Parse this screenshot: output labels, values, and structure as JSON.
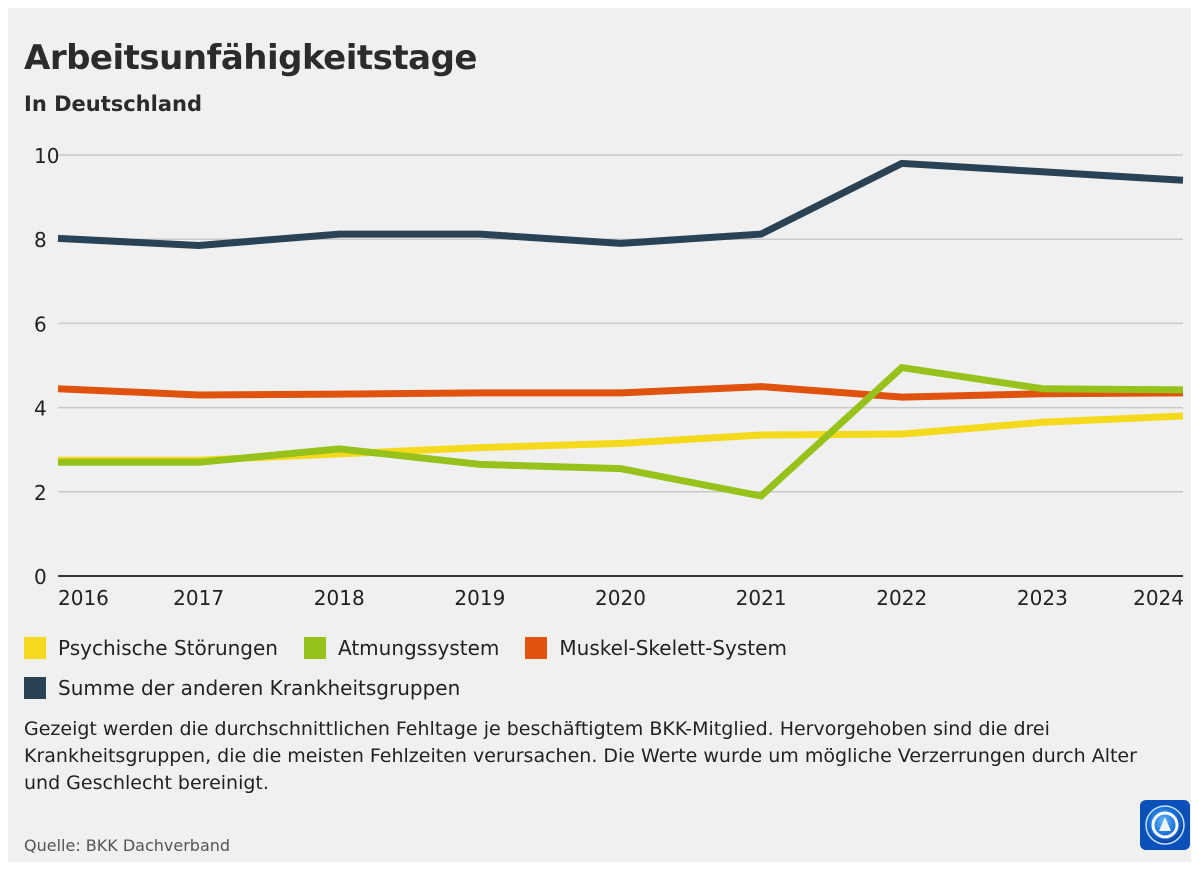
{
  "header": {
    "title": "Arbeitsunfähigkeitstage",
    "subtitle": "In Deutschland"
  },
  "chart_data": {
    "type": "line",
    "title": "Arbeitsunfähigkeitstage",
    "subtitle": "In Deutschland",
    "xlabel": "",
    "ylabel": "",
    "x": [
      "2016",
      "2017",
      "2018",
      "2019",
      "2020",
      "2021",
      "2022",
      "2023",
      "2024"
    ],
    "ylim": [
      0,
      10
    ],
    "yticks": [
      0,
      2,
      4,
      6,
      8,
      10
    ],
    "grid": true,
    "legend_position": "bottom-left",
    "series": [
      {
        "name": "Psychische Störungen",
        "color": "#f5d91d",
        "values": [
          2.75,
          2.75,
          2.9,
          3.05,
          3.15,
          3.35,
          3.37,
          3.65,
          3.8
        ]
      },
      {
        "name": "Muskel-Skelett-System",
        "color": "#e0530f",
        "values": [
          4.45,
          4.3,
          4.32,
          4.35,
          4.35,
          4.5,
          4.25,
          4.33,
          4.35
        ]
      },
      {
        "name": "Atmungssystem",
        "color": "#97c21c",
        "values": [
          2.7,
          2.7,
          3.02,
          2.65,
          2.55,
          1.9,
          4.95,
          4.45,
          4.42
        ]
      },
      {
        "name": "Summe der anderen Krankheitsgruppen",
        "color": "#2a4256",
        "values": [
          8.02,
          7.85,
          8.12,
          8.12,
          7.9,
          8.12,
          9.8,
          9.6,
          9.4
        ]
      }
    ]
  },
  "legend": {
    "items": [
      {
        "label": "Psychische Störungen",
        "color": "#f5d91d"
      },
      {
        "label": "Atmungssystem",
        "color": "#97c21c"
      },
      {
        "label": "Muskel-Skelett-System",
        "color": "#e0530f"
      },
      {
        "label": "Summe der anderen Krankheitsgruppen",
        "color": "#2a4256"
      }
    ]
  },
  "note": "Gezeigt werden die durchschnittlichen Fehltage je beschäftigtem BKK-Mitglied. Hervorgehoben sind die drei Krankheitsgruppen, die die meisten Fehlzeiten verursachen. Die Werte wurde um mögliche Verzerrungen durch Alter und Geschlecht bereinigt.",
  "source": "Quelle: BKK Dachverband",
  "logo": {
    "icon": "tagesschau-logo-icon"
  }
}
